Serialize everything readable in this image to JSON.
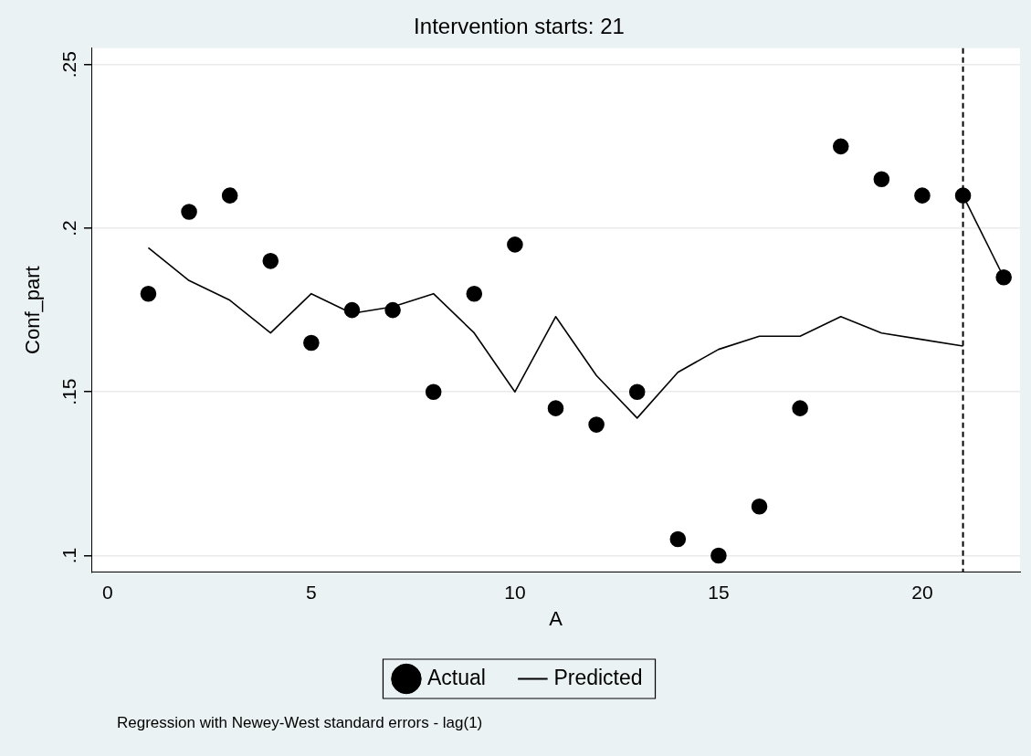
{
  "chart_data": {
    "type": "scatter",
    "title": "Intervention starts: 21",
    "xlabel": "A",
    "ylabel": "Conf_part",
    "x": [
      1,
      2,
      3,
      4,
      5,
      6,
      7,
      8,
      9,
      10,
      11,
      12,
      13,
      14,
      15,
      16,
      17,
      18,
      19,
      20,
      21,
      22
    ],
    "series": [
      {
        "name": "Actual",
        "color": "#000000",
        "marker": "circle",
        "values": [
          0.18,
          0.205,
          0.21,
          0.19,
          0.165,
          0.175,
          0.175,
          0.15,
          0.18,
          0.195,
          0.145,
          0.14,
          0.15,
          0.105,
          0.1,
          0.115,
          0.145,
          0.225,
          0.215,
          0.21,
          0.21,
          0.185
        ]
      },
      {
        "name": "Predicted",
        "type": "line",
        "color": "#000000",
        "marker": "none",
        "x": [
          1,
          2,
          3,
          4,
          5,
          6,
          7,
          8,
          9,
          10,
          11,
          12,
          13,
          14,
          15,
          16,
          17,
          18,
          19,
          20,
          21
        ],
        "values": [
          0.194,
          0.184,
          0.178,
          0.168,
          0.18,
          0.174,
          0.176,
          0.18,
          0.168,
          0.15,
          0.173,
          0.155,
          0.142,
          0.156,
          0.163,
          0.167,
          0.167,
          0.173,
          0.168,
          0.166,
          0.164
        ]
      },
      {
        "type": "line",
        "color": "#000000",
        "marker": "none",
        "x": [
          21,
          22
        ],
        "values": [
          0.21,
          0.185
        ]
      }
    ],
    "xlim": [
      -0.4,
      22.4
    ],
    "xticks": [
      0,
      5,
      10,
      15,
      20
    ],
    "ylim": [
      0.095,
      0.255
    ],
    "yticks": [
      {
        "value": 0.1,
        "label": ".1"
      },
      {
        "value": 0.15,
        "label": ".15"
      },
      {
        "value": 0.2,
        "label": ".2"
      },
      {
        "value": 0.25,
        "label": ".25"
      }
    ],
    "grid": "y",
    "legend": "bottom",
    "ref_lines": [
      {
        "axis": "x",
        "value": 21,
        "color": "#000000",
        "line_style": "dashed"
      }
    ],
    "annotations": [
      "Regression with Newey-West standard errors - lag(1)"
    ]
  }
}
